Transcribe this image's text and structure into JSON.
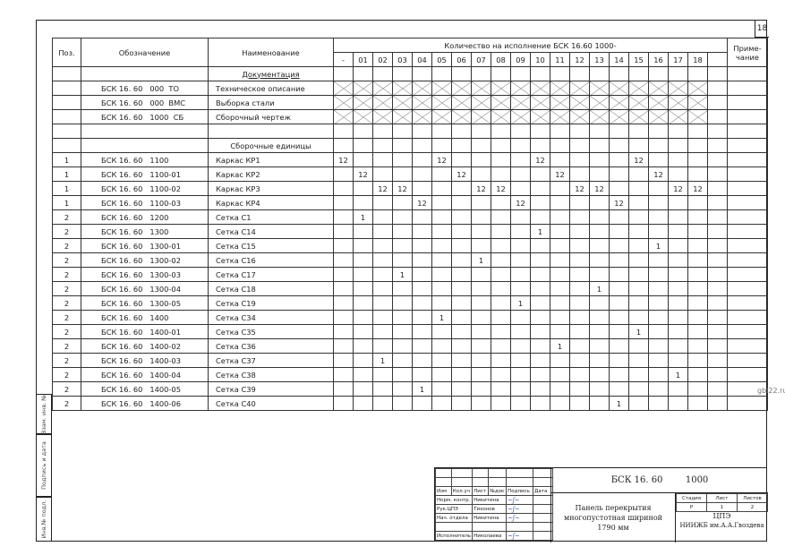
{
  "sheet_number": "18",
  "watermark": "gbi22.ru",
  "header": {
    "pos": "Поз.",
    "designation": "Обозначение",
    "name": "Наименование",
    "quantity_title": "Количество на исполнение БСК 16.60   1000-",
    "note": "Приме-чание",
    "columns": [
      "-",
      "01",
      "02",
      "03",
      "04",
      "05",
      "06",
      "07",
      "08",
      "09",
      "10",
      "11",
      "12",
      "13",
      "14",
      "15",
      "16",
      "17",
      "18",
      ""
    ]
  },
  "rows": [
    {
      "pos": "",
      "designation": "",
      "name": "Документация",
      "section": true
    },
    {
      "pos": "",
      "designation": "БСК 16. 60   000  ТО",
      "name": "Техническое описание",
      "crossed": true
    },
    {
      "pos": "",
      "designation": "БСК 16. 60   000  ВМС",
      "name": "Выборка стали",
      "crossed": true
    },
    {
      "pos": "",
      "designation": "БСК 16. 60   1000  СБ",
      "name": "Сборочный чертеж",
      "crossed": true
    },
    {
      "pos": "",
      "designation": "",
      "name": ""
    },
    {
      "pos": "",
      "designation": "",
      "name": "Сборочные единицы",
      "section": true
    },
    {
      "pos": "1",
      "designation": "БСК 16. 60   1100",
      "name": "Каркас КР1",
      "qty": {
        "-": "12",
        "05": "12",
        "10": "12",
        "15": "12"
      }
    },
    {
      "pos": "1",
      "designation": "БСК 16. 60   1100-01",
      "name": "Каркас КР2",
      "qty": {
        "01": "12",
        "06": "12",
        "11": "12",
        "16": "12"
      }
    },
    {
      "pos": "1",
      "designation": "БСК 16. 60   1100-02",
      "name": "Каркас КР3",
      "qty": {
        "02": "12",
        "03": "12",
        "07": "12",
        "08": "12",
        "12": "12",
        "13": "12",
        "17": "12",
        "18": "12"
      }
    },
    {
      "pos": "1",
      "designation": "БСК 16. 60   1100-03",
      "name": "Каркас КР4",
      "qty": {
        "04": "12",
        "09": "12",
        "14": "12"
      }
    },
    {
      "pos": "2",
      "designation": "БСК 16. 60   1200",
      "name": "Сетка С1",
      "qty": {
        "01": "1"
      }
    },
    {
      "pos": "2",
      "designation": "БСК 16. 60   1300",
      "name": "Сетка С14",
      "qty": {
        "10": "1"
      }
    },
    {
      "pos": "2",
      "designation": "БСК 16. 60   1300-01",
      "name": "Сетка С15",
      "qty": {
        "16": "1"
      }
    },
    {
      "pos": "2",
      "designation": "БСК 16. 60   1300-02",
      "name": "Сетка С16",
      "qty": {
        "07": "1"
      }
    },
    {
      "pos": "2",
      "designation": "БСК 16. 60   1300-03",
      "name": "Сетка С17",
      "qty": {
        "03": "1"
      }
    },
    {
      "pos": "2",
      "designation": "БСК 16. 60   1300-04",
      "name": "Сетка С18",
      "qty": {
        "13": "1"
      }
    },
    {
      "pos": "2",
      "designation": "БСК 16. 60   1300-05",
      "name": "Сетка С19",
      "qty": {
        "09": "1"
      }
    },
    {
      "pos": "2",
      "designation": "БСК 16. 60   1400",
      "name": "Сетка С34",
      "qty": {
        "05": "1"
      }
    },
    {
      "pos": "2",
      "designation": "БСК 16. 60   1400-01",
      "name": "Сетка С35",
      "qty": {
        "15": "1"
      }
    },
    {
      "pos": "2",
      "designation": "БСК 16. 60   1400-02",
      "name": "Сетка С36",
      "qty": {
        "11": "1"
      }
    },
    {
      "pos": "2",
      "designation": "БСК 16. 60   1400-03",
      "name": "Сетка С37",
      "qty": {
        "02": "1"
      }
    },
    {
      "pos": "2",
      "designation": "БСК 16. 60   1400-04",
      "name": "Сетка С38",
      "qty": {
        "17": "1"
      }
    },
    {
      "pos": "2",
      "designation": "БСК 16. 60   1400-05",
      "name": "Сетка С39",
      "qty": {
        "04": "1"
      }
    },
    {
      "pos": "2",
      "designation": "БСК 16. 60   1400-06",
      "name": "Сетка С40",
      "qty": {
        "14": "1"
      }
    }
  ],
  "side_stamp": [
    "Взам. инв. №",
    "Подпись и дата",
    "Инв.№ подл."
  ],
  "title_block": {
    "headers": [
      "Изм",
      "Кол.уч",
      "Лист",
      "№док",
      "Подпись",
      "Дата"
    ],
    "people": [
      {
        "role": "Норм. контр.",
        "name": "Никитина",
        "sign": "signature"
      },
      {
        "role": "Рук.ЦПЭ",
        "name": "Тихонов",
        "sign": "signature"
      },
      {
        "role": "Нач. отдела",
        "name": "Никитина",
        "sign": "signature"
      },
      {
        "role": "",
        "name": "",
        "sign": ""
      },
      {
        "role": "Исполнитель",
        "name": "Николаева",
        "sign": "signature"
      }
    ],
    "code": "БСК 16. 60        1000",
    "title": "Панель перекрытия многопустотная шириной  1790 мм",
    "stage_label": "Стадия",
    "sheet_label": "Лист",
    "sheets_label": "Листов",
    "stage": "Р",
    "sheet": "1",
    "sheets": "2",
    "org": "ЦПЭ",
    "org2": "НИИЖБ им.А.А.Гвоздева"
  }
}
